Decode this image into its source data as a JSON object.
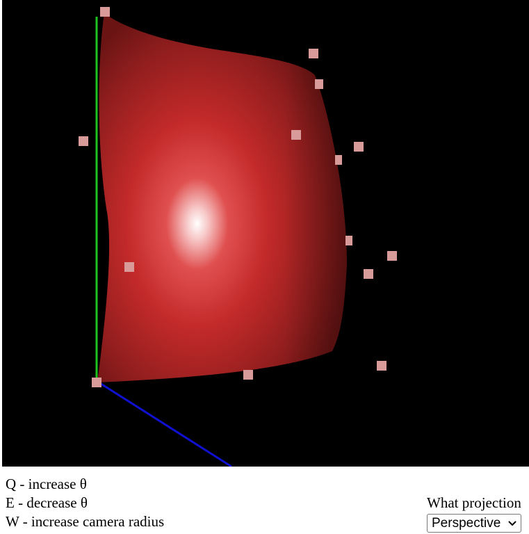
{
  "controls": {
    "lines": [
      "Q - increase θ",
      "E - decrease θ",
      "W - increase camera radius"
    ]
  },
  "projection": {
    "label": "What projection",
    "selected": "Perspective",
    "options": [
      "Perspective"
    ]
  },
  "scene": {
    "surface_color": "#c42a2a",
    "control_point_color": "#d99a9a",
    "axes": {
      "y_color": "#1ec31e",
      "z_color": "#1010d0"
    },
    "control_point_count": 15
  }
}
